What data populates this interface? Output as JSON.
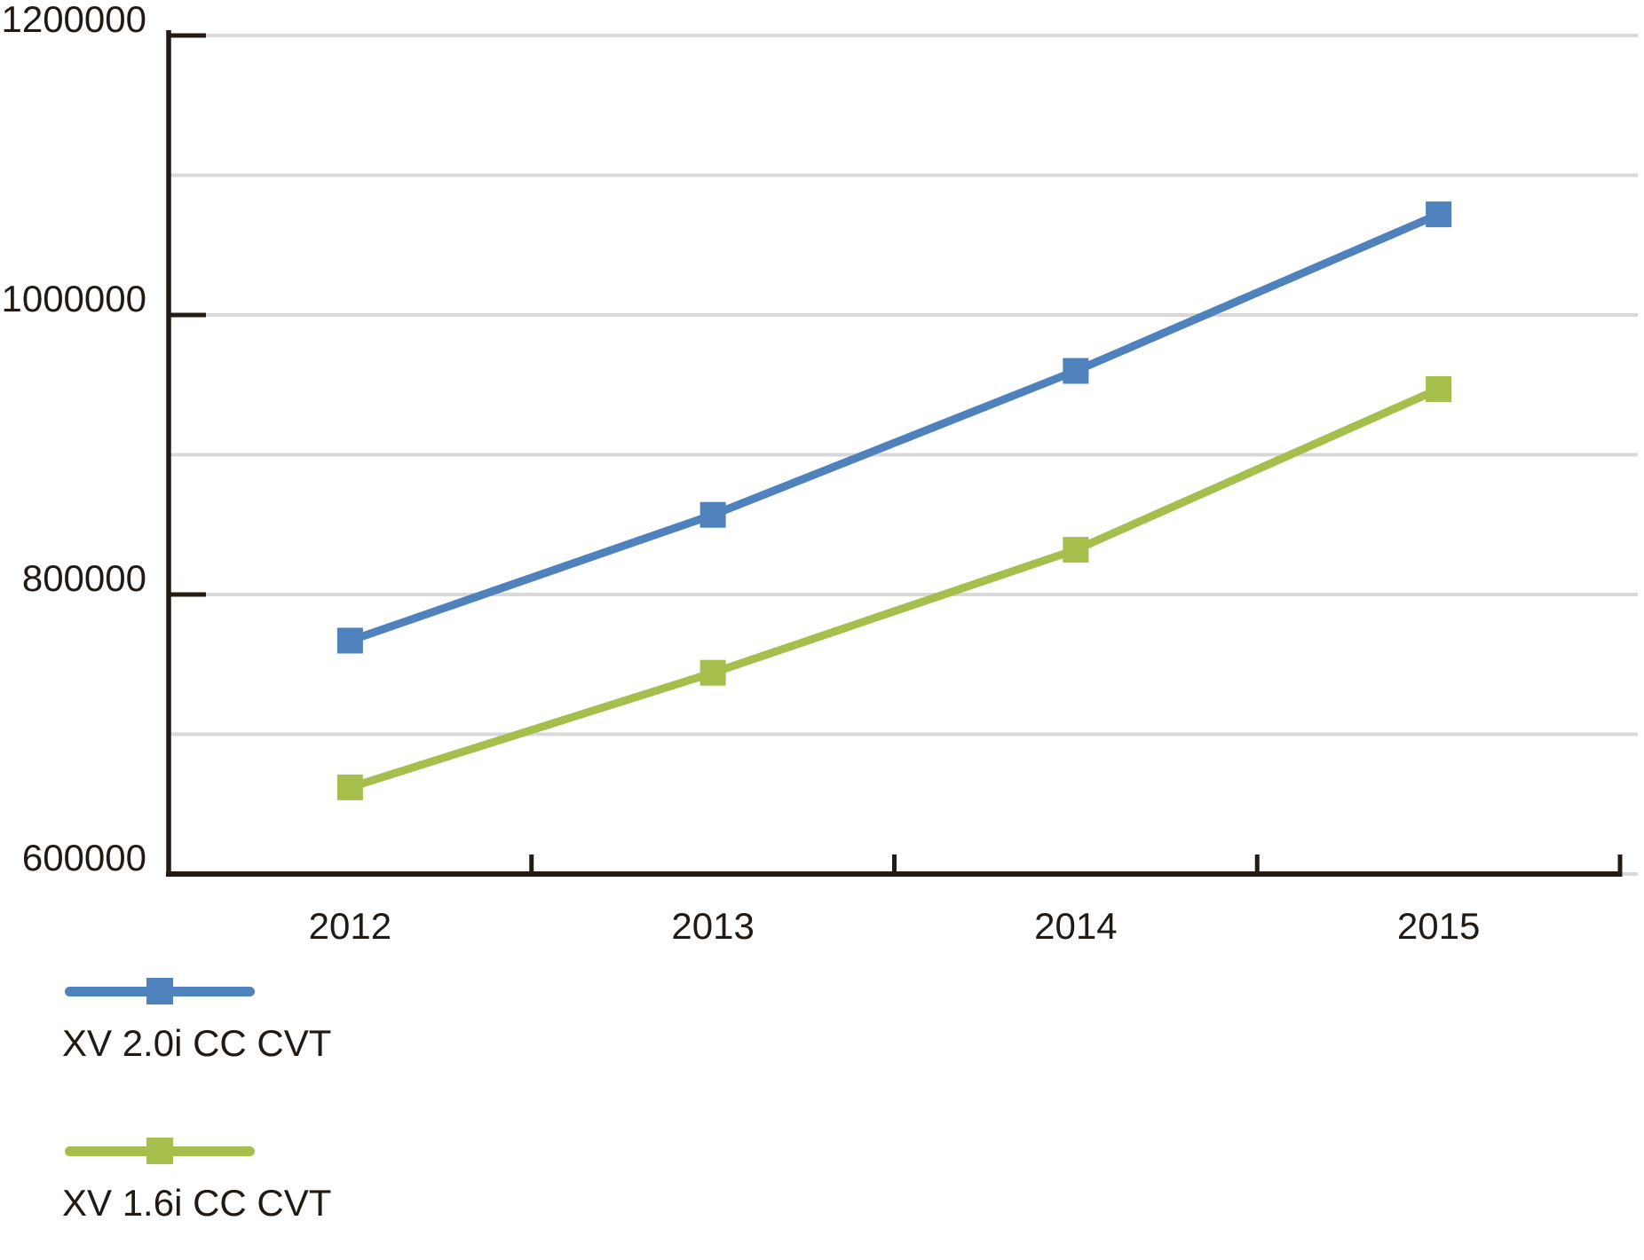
{
  "chart_data": {
    "type": "line",
    "title": "",
    "categories": [
      "2012",
      "2013",
      "2014",
      "2015"
    ],
    "series": [
      {
        "name": "XV 2.0i CC CVT",
        "color": "#4F81BD",
        "values": [
          767000,
          857000,
          960000,
          1072000
        ]
      },
      {
        "name": "XV 1.6i CC CVT",
        "color": "#A5BE4C",
        "values": [
          662000,
          744000,
          832000,
          947000
        ]
      }
    ],
    "x_axis": {
      "labels": [
        "2012",
        "2013",
        "2014",
        "2015"
      ]
    },
    "y_axis": {
      "min": 600000,
      "max": 1200000,
      "gridline_step": 100000,
      "label_step": 200000,
      "ticks": [
        {
          "label": "1200000",
          "value": 1200000
        },
        {
          "label": "1000000",
          "value": 1000000
        },
        {
          "label": "800000",
          "value": 800000
        },
        {
          "label": "600000",
          "value": 600000
        }
      ]
    },
    "grid": true,
    "marker": "square",
    "legend_position": "bottom-left"
  },
  "styles": {
    "background": "#FFFFFF",
    "axis_color": "#241c12",
    "gridline_color": "#D9D9D9",
    "text_color": "#221a12"
  }
}
